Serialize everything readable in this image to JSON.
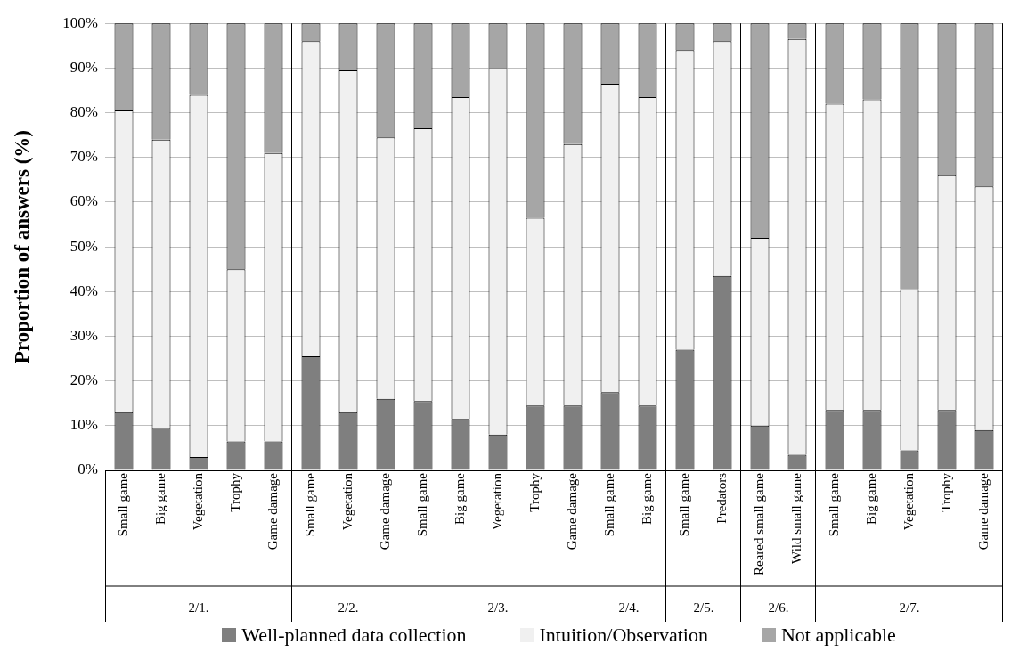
{
  "chart_data": [
    {
      "type": "bar",
      "stacked": true,
      "xlabel": "2/1.",
      "ylabel": "Proportion of answers (%)",
      "categories": [
        "Small game",
        "Big game",
        "Vegetation",
        "Trophy",
        "Game damage"
      ],
      "series": [
        {
          "name": "Well-planned data collection",
          "color": "#7f7f7f",
          "values": [
            13,
            9.5,
            3,
            6.5,
            6.5
          ]
        },
        {
          "name": "Intuition/Observation",
          "color": "#f0f0f0",
          "values": [
            67.5,
            64.5,
            81,
            38.5,
            64.5
          ]
        },
        {
          "name": "Not applicable",
          "color": "#a6a6a6",
          "values": [
            19.5,
            26,
            16,
            55,
            29
          ]
        }
      ],
      "ylim": [
        0,
        100
      ],
      "yticks": [
        {
          "value": 0,
          "label": "0%"
        },
        {
          "value": 10,
          "label": "10%"
        },
        {
          "value": 20,
          "label": "20%"
        },
        {
          "value": 30,
          "label": "30%"
        },
        {
          "value": 40,
          "label": "40%"
        },
        {
          "value": 50,
          "label": "50%"
        },
        {
          "value": 60,
          "label": "60%"
        },
        {
          "value": 70,
          "label": "70%"
        },
        {
          "value": 80,
          "label": "80%"
        },
        {
          "value": 90,
          "label": "90%"
        },
        {
          "value": 100,
          "label": "100%"
        }
      ],
      "grid": "y",
      "legend": "bottom"
    },
    {
      "type": "bar",
      "stacked": true,
      "xlabel": "2/2.",
      "categories": [
        "Small game",
        "Vegetation",
        "Game damage"
      ],
      "series": [
        {
          "color": "#7f7f7f",
          "values": [
            25.5,
            13,
            16
          ]
        },
        {
          "color": "#f0f0f0",
          "values": [
            70.5,
            76.5,
            58.5
          ]
        },
        {
          "color": "#a6a6a6",
          "values": [
            4,
            10.5,
            25.5
          ]
        }
      ],
      "ylim": [
        0,
        100
      ],
      "yticks": [
        0,
        10,
        20,
        30,
        40,
        50,
        60,
        70,
        80,
        90,
        100
      ],
      "grid": "y",
      "tick_labels": "x"
    },
    {
      "type": "bar",
      "stacked": true,
      "xlabel": "2/3.",
      "categories": [
        "Small game",
        "Big game",
        "Vegetation",
        "Trophy",
        "Game damage"
      ],
      "series": [
        {
          "color": "#7f7f7f",
          "values": [
            15.5,
            11.5,
            8,
            14.5,
            14.5
          ]
        },
        {
          "color": "#f0f0f0",
          "values": [
            61,
            72,
            82,
            42,
            58.5
          ]
        },
        {
          "color": "#a6a6a6",
          "values": [
            23.5,
            16.5,
            10,
            43.5,
            27
          ]
        }
      ],
      "ylim": [
        0,
        100
      ],
      "yticks": [
        0,
        10,
        20,
        30,
        40,
        50,
        60,
        70,
        80,
        90,
        100
      ],
      "grid": "y",
      "tick_labels": "x"
    },
    {
      "type": "bar",
      "stacked": true,
      "xlabel": "2/4.",
      "categories": [
        "Small game",
        "Big game"
      ],
      "series": [
        {
          "color": "#7f7f7f",
          "values": [
            17.5,
            14.5
          ]
        },
        {
          "color": "#f0f0f0",
          "values": [
            69,
            69
          ]
        },
        {
          "color": "#a6a6a6",
          "values": [
            13.5,
            16.5
          ]
        }
      ],
      "ylim": [
        0,
        100
      ],
      "yticks": [
        0,
        10,
        20,
        30,
        40,
        50,
        60,
        70,
        80,
        90,
        100
      ],
      "grid": "y",
      "tick_labels": "x"
    },
    {
      "type": "bar",
      "stacked": true,
      "xlabel": "2/5.",
      "categories": [
        "Small game",
        "Predators"
      ],
      "series": [
        {
          "color": "#7f7f7f",
          "values": [
            27,
            43.5
          ]
        },
        {
          "color": "#f0f0f0",
          "values": [
            67,
            52.5
          ]
        },
        {
          "color": "#a6a6a6",
          "values": [
            6,
            4
          ]
        }
      ],
      "ylim": [
        0,
        100
      ],
      "yticks": [
        0,
        10,
        20,
        30,
        40,
        50,
        60,
        70,
        80,
        90,
        100
      ],
      "grid": "y",
      "tick_labels": "x"
    },
    {
      "type": "bar",
      "stacked": true,
      "xlabel": "2/6.",
      "categories": [
        "Reared small game",
        "Wild small game"
      ],
      "series": [
        {
          "color": "#7f7f7f",
          "values": [
            10,
            3.5
          ]
        },
        {
          "color": "#f0f0f0",
          "values": [
            42,
            93
          ]
        },
        {
          "color": "#a6a6a6",
          "values": [
            48,
            3.5
          ]
        }
      ],
      "ylim": [
        0,
        100
      ],
      "yticks": [
        0,
        10,
        20,
        30,
        40,
        50,
        60,
        70,
        80,
        90,
        100
      ],
      "grid": "y",
      "tick_labels": "x"
    },
    {
      "type": "bar",
      "stacked": true,
      "xlabel": "2/7.",
      "categories": [
        "Small game",
        "Big game",
        "Vegetation",
        "Trophy",
        "Game damage"
      ],
      "series": [
        {
          "color": "#7f7f7f",
          "values": [
            13.5,
            13.5,
            4.5,
            13.5,
            9
          ]
        },
        {
          "color": "#f0f0f0",
          "values": [
            68.5,
            69.5,
            36,
            52.5,
            54.5
          ]
        },
        {
          "color": "#a6a6a6",
          "values": [
            18,
            17,
            59.5,
            34,
            36.5
          ]
        }
      ],
      "ylim": [
        0,
        100
      ],
      "yticks": [
        0,
        10,
        20,
        30,
        40,
        50,
        60,
        70,
        80,
        90,
        100
      ],
      "grid": "y",
      "tick_labels": "x"
    }
  ]
}
